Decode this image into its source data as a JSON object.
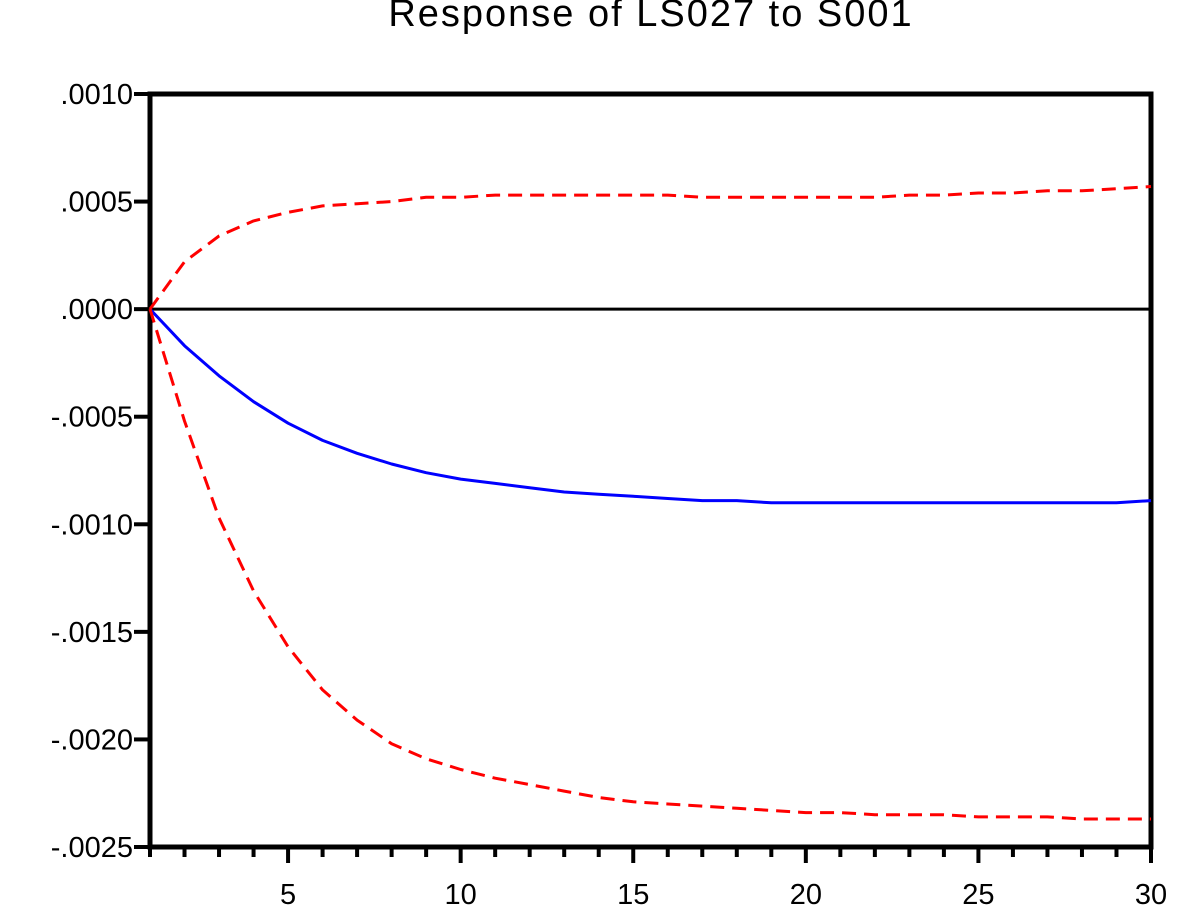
{
  "chart_data": {
    "type": "line",
    "title": "Response of LS027 to S001",
    "xlabel": "",
    "ylabel": "",
    "xlim": [
      1,
      30
    ],
    "ylim": [
      -0.0025,
      0.001
    ],
    "x_ticks": [
      5,
      10,
      15,
      20,
      25,
      30
    ],
    "x_tick_labels": [
      "5",
      "10",
      "15",
      "20",
      "25",
      "30"
    ],
    "y_ticks": [
      0.001,
      0.0005,
      0.0,
      -0.0005,
      -0.001,
      -0.0015,
      -0.002,
      -0.0025
    ],
    "y_tick_labels": [
      ".0010",
      ".0005",
      ".0000",
      "-.0005",
      "-.0010",
      "-.0015",
      "-.0020",
      "-.0025"
    ],
    "grid": false,
    "zero_line": true,
    "x": [
      1,
      2,
      3,
      4,
      5,
      6,
      7,
      8,
      9,
      10,
      11,
      12,
      13,
      14,
      15,
      16,
      17,
      18,
      19,
      20,
      21,
      22,
      23,
      24,
      25,
      26,
      27,
      28,
      29,
      30
    ],
    "series": [
      {
        "color": "#0000ff",
        "style": "solid",
        "values": [
          0.0,
          -0.00017,
          -0.00031,
          -0.00043,
          -0.00053,
          -0.00061,
          -0.00067,
          -0.00072,
          -0.00076,
          -0.00079,
          -0.00081,
          -0.00083,
          -0.00085,
          -0.00086,
          -0.00087,
          -0.00088,
          -0.00089,
          -0.00089,
          -0.0009,
          -0.0009,
          -0.0009,
          -0.0009,
          -0.0009,
          -0.0009,
          -0.0009,
          -0.0009,
          -0.0009,
          -0.0009,
          -0.0009,
          -0.00089
        ]
      },
      {
        "color": "#ff0000",
        "style": "dashed",
        "values": [
          0.0,
          0.00022,
          0.00034,
          0.00041,
          0.00045,
          0.00048,
          0.00049,
          0.0005,
          0.00052,
          0.00052,
          0.00053,
          0.00053,
          0.00053,
          0.00053,
          0.00053,
          0.00053,
          0.00052,
          0.00052,
          0.00052,
          0.00052,
          0.00052,
          0.00052,
          0.00053,
          0.00053,
          0.00054,
          0.00054,
          0.00055,
          0.00055,
          0.00056,
          0.00057
        ]
      },
      {
        "color": "#ff0000",
        "style": "dashed",
        "values": [
          0.0,
          -0.00052,
          -0.00097,
          -0.00131,
          -0.00157,
          -0.00177,
          -0.00191,
          -0.00202,
          -0.00209,
          -0.00214,
          -0.00218,
          -0.00221,
          -0.00224,
          -0.00227,
          -0.00229,
          -0.0023,
          -0.00231,
          -0.00232,
          -0.00233,
          -0.00234,
          -0.00234,
          -0.00235,
          -0.00235,
          -0.00235,
          -0.00236,
          -0.00236,
          -0.00236,
          -0.00237,
          -0.00237,
          -0.00237
        ]
      }
    ]
  }
}
